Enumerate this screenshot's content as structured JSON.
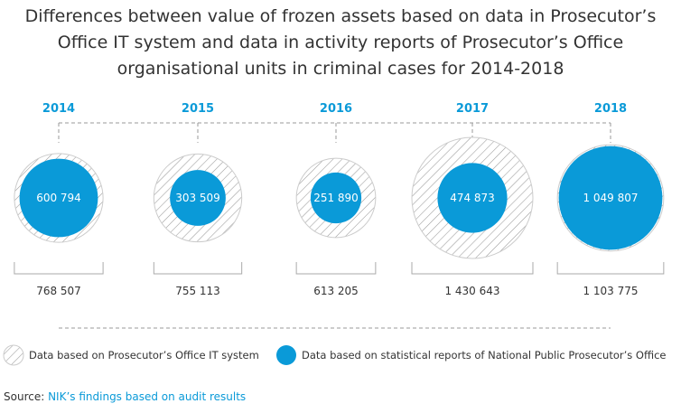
{
  "chart_data": {
    "type": "bubble",
    "title": "Differences between value of frozen assets based on data in Prosecutor’s Office IT system and data in activity reports of Prosecutor’s Office organisational units in criminal cases for 2014-2018",
    "categories": [
      "2014",
      "2015",
      "2016",
      "2017",
      "2018"
    ],
    "series": [
      {
        "name": "Data based on Prosecutor’s Office IT system",
        "style": "hatched",
        "values": [
          768507,
          755113,
          613205,
          1430643,
          1103775
        ],
        "labels": [
          "768 507",
          "755 113",
          "613 205",
          "1 430 643",
          "1 103 775"
        ]
      },
      {
        "name": "Data based on statistical reports of National Public Prosecutor’s Office",
        "style": "solid",
        "values": [
          600794,
          303509,
          251890,
          474873,
          1049807
        ],
        "labels": [
          "600 794",
          "303 509",
          "251 890",
          "474 873",
          "1 049 807"
        ]
      }
    ],
    "encoding": "circle area proportional to value",
    "legend_placement": "bottom"
  },
  "colors": {
    "accent": "#0a9ad8",
    "hatch": "#9a9a9a",
    "text": "#333333",
    "line": "#aaaaaa"
  },
  "source": {
    "prefix": "Source: ",
    "text": "NIK’s findings based on audit results"
  }
}
